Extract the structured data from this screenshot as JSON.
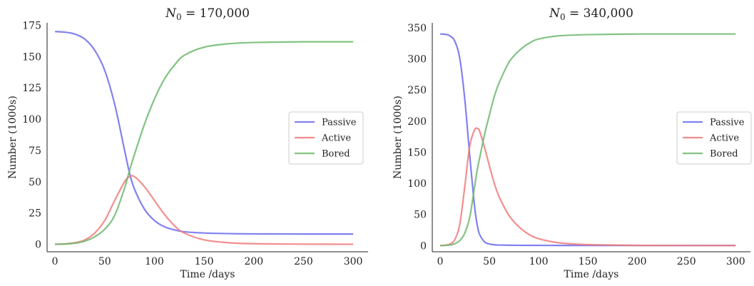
{
  "chart_data": [
    {
      "type": "line",
      "title": "N0 = 170,000",
      "title_parts": {
        "symbol": "N",
        "subscript": "0",
        "rest": " = 170,000"
      },
      "xlabel": "Time /days",
      "ylabel": "Number (1000s)",
      "xlim": [
        -8,
        315
      ],
      "ylim": [
        -6,
        177
      ],
      "xticks": [
        0,
        50,
        100,
        150,
        200,
        250,
        300
      ],
      "xtick_labels": [
        "0",
        "50",
        "100",
        "150",
        "200",
        "250",
        "300"
      ],
      "yticks": [
        0,
        25,
        50,
        75,
        100,
        125,
        150,
        175
      ],
      "ytick_labels": [
        "0",
        "25",
        "50",
        "75",
        "100",
        "125",
        "150",
        "175"
      ],
      "grid": false,
      "legend_position": "center-right",
      "x": [
        0,
        10,
        20,
        30,
        40,
        50,
        60,
        70,
        75,
        80,
        90,
        100,
        110,
        120,
        130,
        150,
        175,
        200,
        250,
        300
      ],
      "series": [
        {
          "name": "Passive",
          "color": "#6b6bef",
          "values": [
            170,
            169.5,
            168,
            164,
            155,
            139,
            112,
            75,
            57,
            44,
            28,
            19,
            14,
            11.5,
            10,
            9,
            8.5,
            8.3,
            8.2,
            8.2
          ]
        },
        {
          "name": "Active",
          "color": "#f07a7a",
          "values": [
            0,
            0.3,
            1.2,
            3.5,
            9,
            19,
            35,
            50,
            54,
            54,
            46,
            35,
            24,
            15,
            9,
            3.5,
            1.2,
            0.4,
            0.1,
            0
          ]
        },
        {
          "name": "Bored",
          "color": "#6cb86c",
          "values": [
            0,
            0.2,
            0.8,
            2.5,
            6,
            12,
            23,
            45,
            59,
            72,
            96,
            116,
            132,
            143,
            151,
            157.5,
            160.3,
            161.3,
            161.8,
            161.8
          ]
        }
      ]
    },
    {
      "type": "line",
      "title": "N0 = 340,000",
      "title_parts": {
        "symbol": "N",
        "subscript": "0",
        "rest": " = 340,000"
      },
      "xlabel": "Time /days",
      "ylabel": "Number (1000s)",
      "xlim": [
        -8,
        315
      ],
      "ylim": [
        -10,
        358
      ],
      "xticks": [
        0,
        50,
        100,
        150,
        200,
        250,
        300
      ],
      "xtick_labels": [
        "0",
        "50",
        "100",
        "150",
        "200",
        "250",
        "300"
      ],
      "yticks": [
        0,
        50,
        100,
        150,
        200,
        250,
        300,
        350
      ],
      "ytick_labels": [
        "0",
        "50",
        "100",
        "150",
        "200",
        "250",
        "300",
        "350"
      ],
      "grid": false,
      "legend_position": "center-right",
      "x": [
        0,
        5,
        10,
        15,
        20,
        25,
        30,
        35,
        38,
        40,
        45,
        50,
        55,
        60,
        70,
        80,
        90,
        100,
        120,
        150,
        200,
        250,
        300
      ],
      "series": [
        {
          "name": "Passive",
          "color": "#6b6bef",
          "values": [
            340,
            339.5,
            337,
            328,
            300,
            235,
            145,
            62,
            30,
            18,
            6,
            2.5,
            1.2,
            0.8,
            0.5,
            0.4,
            0.3,
            0.3,
            0.2,
            0.2,
            0.1,
            0.1,
            0.1
          ]
        },
        {
          "name": "Active",
          "color": "#f07a7a",
          "values": [
            0,
            0.5,
            2.5,
            10,
            35,
            95,
            160,
            186,
            188,
            184,
            158,
            128,
            100,
            78,
            48,
            30,
            18,
            11,
            4.5,
            1.5,
            0.3,
            0.1,
            0
          ]
        },
        {
          "name": "Bored",
          "color": "#6cb86c",
          "values": [
            0,
            0.2,
            0.8,
            3,
            8,
            20,
            45,
            95,
            125,
            140,
            178,
            210,
            240,
            262,
            295,
            313,
            325,
            332,
            337,
            339,
            340,
            340,
            340
          ]
        }
      ]
    }
  ]
}
